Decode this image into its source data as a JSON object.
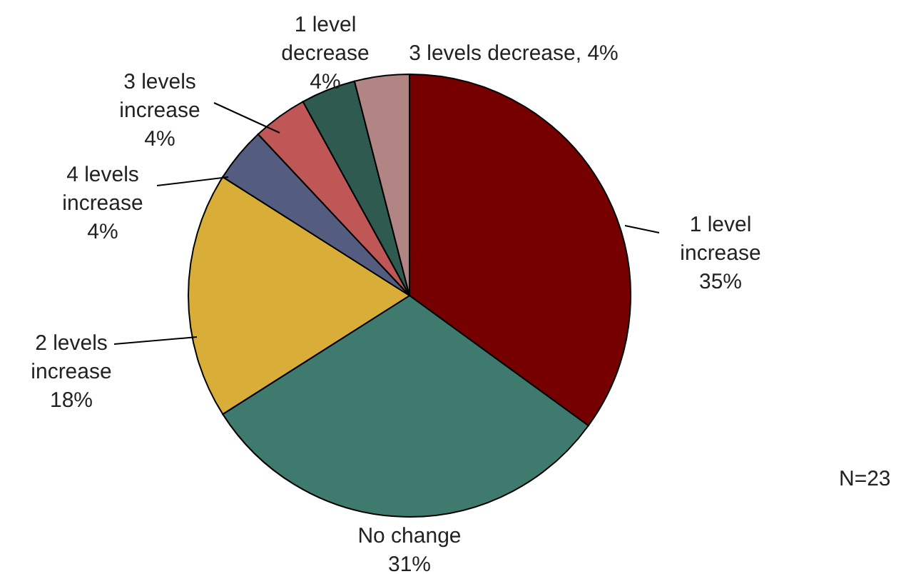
{
  "chart_data": {
    "type": "pie",
    "categories": [
      "1 level increase",
      "No change",
      "2 levels increase",
      "4 levels increase",
      "3 levels increase",
      "1 level decrease",
      "3 levels decrease"
    ],
    "value_labels": [
      "35%",
      "31%",
      "18%",
      "4%",
      "4%",
      "4%",
      "4%"
    ],
    "values": [
      35,
      31,
      18,
      4,
      4,
      4,
      4
    ],
    "colors": [
      "#760000",
      "#3f7a6e",
      "#d9ae38",
      "#545d7f",
      "#c05757",
      "#2e5a50",
      "#b08583"
    ],
    "annotations": [
      "N=23"
    ]
  }
}
